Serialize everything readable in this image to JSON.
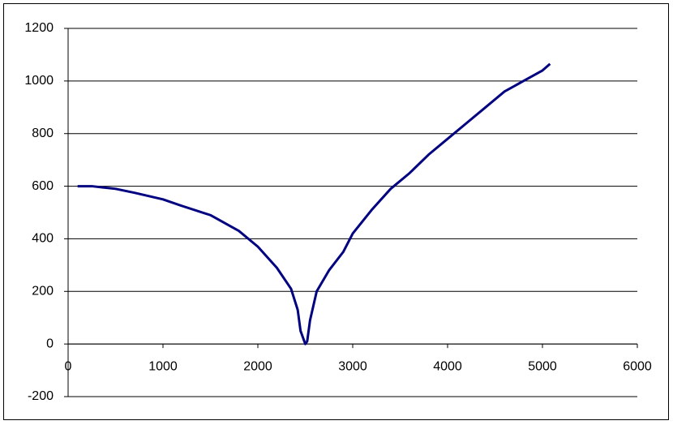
{
  "chart_data": {
    "type": "line",
    "x": [
      100,
      250,
      500,
      700,
      1000,
      1200,
      1500,
      1800,
      2000,
      2200,
      2350,
      2420,
      2450,
      2500,
      2520,
      2550,
      2620,
      2750,
      2900,
      3000,
      3200,
      3400,
      3600,
      3800,
      4000,
      4200,
      4400,
      4600,
      4800,
      5000,
      5080
    ],
    "values": [
      600,
      600,
      590,
      575,
      550,
      525,
      490,
      430,
      370,
      290,
      210,
      130,
      50,
      0,
      10,
      90,
      200,
      280,
      350,
      420,
      510,
      590,
      650,
      720,
      780,
      840,
      900,
      960,
      1000,
      1040,
      1065
    ],
    "color": "#000080",
    "xlim": [
      0,
      6000
    ],
    "xticks": [
      0,
      1000,
      2000,
      3000,
      4000,
      5000,
      6000
    ],
    "ylim": [
      -200,
      1200
    ],
    "yticks": [
      -200,
      0,
      200,
      400,
      600,
      800,
      1000,
      1200
    ],
    "grid": true
  }
}
